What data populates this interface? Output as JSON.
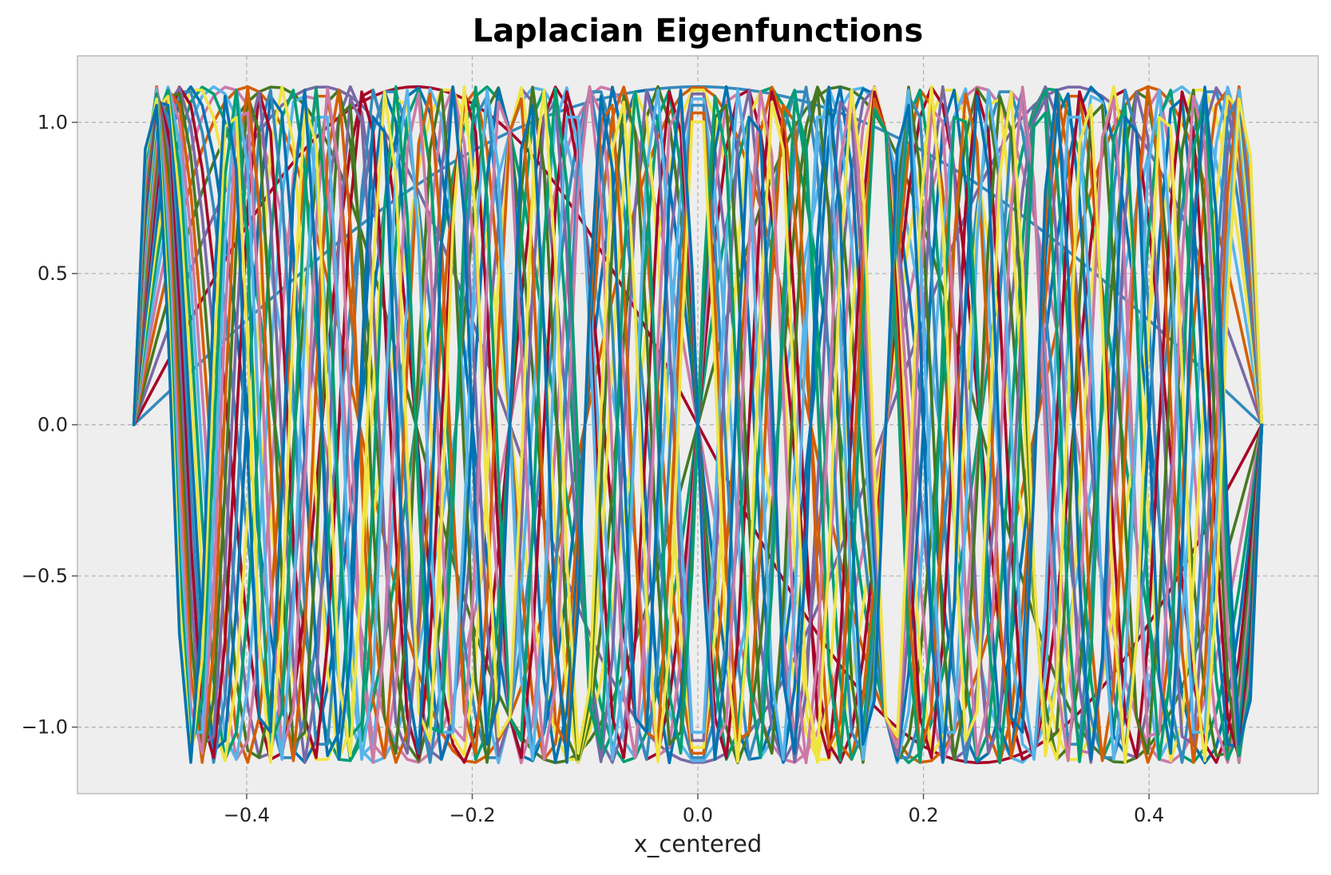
{
  "chart_data": {
    "type": "line",
    "title": "Laplacian Eigenfunctions",
    "xlabel": "x_centered",
    "ylabel": "",
    "xlim": [
      -0.55,
      0.55
    ],
    "ylim": [
      -1.22,
      1.22
    ],
    "x_domain": [
      -0.5,
      0.5
    ],
    "grid": true,
    "legend": "none",
    "background_color": "#eeeeee",
    "x_ticks": [
      -0.4,
      -0.2,
      0.0,
      0.2,
      0.4
    ],
    "x_tick_labels": [
      "−0.4",
      "−0.2",
      "0.0",
      "0.2",
      "0.4"
    ],
    "y_ticks": [
      -1.0,
      -0.5,
      0.0,
      0.5,
      1.0
    ],
    "y_tick_labels": [
      "−1.0",
      "−0.5",
      "0.0",
      "0.5",
      "1.0"
    ],
    "amplitude": 1.118,
    "sample_count": 100,
    "series": [
      {
        "mode": 1,
        "color": "#348abd"
      },
      {
        "mode": 2,
        "color": "#a60628"
      },
      {
        "mode": 3,
        "color": "#7a68a6"
      },
      {
        "mode": 4,
        "color": "#467821"
      },
      {
        "mode": 5,
        "color": "#d55e00"
      },
      {
        "mode": 6,
        "color": "#cc79a7"
      },
      {
        "mode": 7,
        "color": "#56b4e9"
      },
      {
        "mode": 8,
        "color": "#009e73"
      },
      {
        "mode": 9,
        "color": "#f0e442"
      },
      {
        "mode": 10,
        "color": "#0072b2"
      },
      {
        "mode": 11,
        "color": "#348abd"
      },
      {
        "mode": 12,
        "color": "#a60628"
      },
      {
        "mode": 13,
        "color": "#7a68a6"
      },
      {
        "mode": 14,
        "color": "#467821"
      },
      {
        "mode": 15,
        "color": "#d55e00"
      },
      {
        "mode": 16,
        "color": "#cc79a7"
      },
      {
        "mode": 17,
        "color": "#56b4e9"
      },
      {
        "mode": 18,
        "color": "#009e73"
      },
      {
        "mode": 19,
        "color": "#f0e442"
      },
      {
        "mode": 20,
        "color": "#0072b2"
      },
      {
        "mode": 21,
        "color": "#348abd"
      },
      {
        "mode": 22,
        "color": "#a60628"
      },
      {
        "mode": 23,
        "color": "#7a68a6"
      },
      {
        "mode": 24,
        "color": "#467821"
      },
      {
        "mode": 25,
        "color": "#d55e00"
      },
      {
        "mode": 26,
        "color": "#cc79a7"
      },
      {
        "mode": 27,
        "color": "#56b4e9"
      },
      {
        "mode": 28,
        "color": "#009e73"
      },
      {
        "mode": 29,
        "color": "#f0e442"
      },
      {
        "mode": 30,
        "color": "#0072b2"
      }
    ]
  }
}
